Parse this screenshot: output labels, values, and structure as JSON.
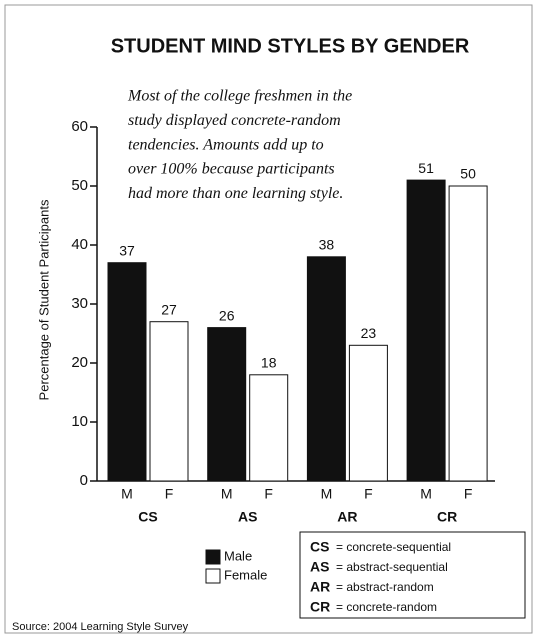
{
  "chart_data": {
    "type": "bar",
    "title": "STUDENT MIND STYLES BY GENDER",
    "annotation": [
      "Most of the college freshmen in the",
      "study displayed concrete-random",
      "tendencies. Amounts add up to",
      "over 100% because participants",
      "had more than one learning style."
    ],
    "y_label": "Percentage of Student Participants",
    "categories": [
      "CS",
      "AS",
      "AR",
      "CR"
    ],
    "series": [
      {
        "name": "Male",
        "short": "M",
        "color": "#111111",
        "values": [
          37,
          26,
          38,
          51
        ]
      },
      {
        "name": "Female",
        "short": "F",
        "color": "#ffffff",
        "values": [
          27,
          18,
          23,
          50
        ]
      }
    ],
    "ylim": [
      0,
      60
    ],
    "yticks": [
      0,
      10,
      20,
      30,
      40,
      50,
      60
    ],
    "key": [
      {
        "abbr": "CS",
        "definition": "= concrete-sequential"
      },
      {
        "abbr": "AS",
        "definition": "= abstract-sequential"
      },
      {
        "abbr": "AR",
        "definition": "= abstract-random"
      },
      {
        "abbr": "CR",
        "definition": "= concrete-random"
      }
    ],
    "source": "Source: 2004 Learning Style Survey"
  }
}
